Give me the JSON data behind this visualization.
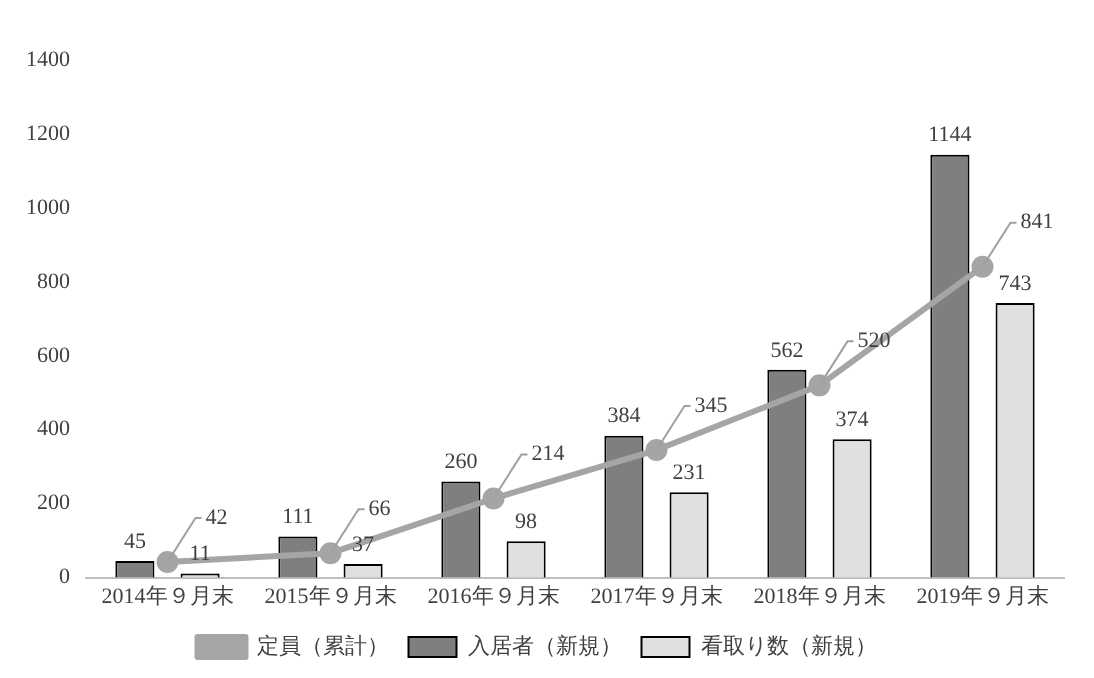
{
  "chart_data": {
    "type": "bar",
    "categories": [
      "2014年９月末",
      "2015年９月末",
      "2016年９月末",
      "2017年９月末",
      "2018年９月末",
      "2019年９月末"
    ],
    "series": [
      {
        "name": "入居者（新規）",
        "color": "#7f7f7f",
        "values": [
          45,
          111,
          260,
          384,
          562,
          1144
        ]
      },
      {
        "name": "看取り数（新規）",
        "color": "#e0e0e0",
        "values": [
          11,
          37,
          98,
          231,
          374,
          743
        ]
      },
      {
        "name": "定員（累計）",
        "type": "line",
        "color": "#a5a5a5",
        "marker": "circle",
        "values": [
          42,
          66,
          214,
          345,
          520,
          841
        ]
      }
    ],
    "ylim": [
      0,
      1400
    ],
    "yticks": [
      0,
      200,
      400,
      600,
      800,
      1000,
      1200,
      1400
    ],
    "grid": false,
    "legend": "bottom",
    "data_labels": true
  }
}
